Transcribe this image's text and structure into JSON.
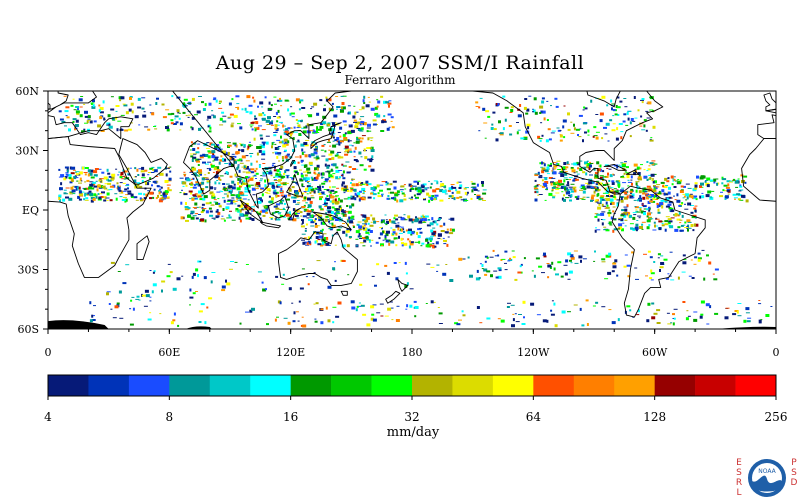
{
  "title": "Aug 29 – Sep 2, 2007 SSM/I Rainfall",
  "subtitle": "Ferraro Algorithm",
  "map": {
    "lon_ticks": [
      {
        "label": "0",
        "lon": 0
      },
      {
        "label": "60E",
        "lon": 60
      },
      {
        "label": "120E",
        "lon": 120
      },
      {
        "label": "180",
        "lon": 180
      },
      {
        "label": "120W",
        "lon": 240
      },
      {
        "label": "60W",
        "lon": 300
      },
      {
        "label": "0",
        "lon": 360
      }
    ],
    "lat_ticks": [
      {
        "label": "60N",
        "lat": 60
      },
      {
        "label": "30N",
        "lat": 30
      },
      {
        "label": "EQ",
        "lat": 0
      },
      {
        "label": "30S",
        "lat": -30
      },
      {
        "label": "60S",
        "lat": -60
      }
    ],
    "lon_range": [
      0,
      360
    ],
    "lat_range": [
      -60,
      60
    ],
    "land_color": "#000000",
    "ocean_color": "#ffffff"
  },
  "colorbar": {
    "colors": [
      "#061a78",
      "#0033b8",
      "#1a4cff",
      "#009999",
      "#00c8c8",
      "#00ffff",
      "#009900",
      "#00c800",
      "#00ff00",
      "#b3b300",
      "#dcdc00",
      "#ffff00",
      "#ff5000",
      "#ff7f00",
      "#ffa000",
      "#960000",
      "#c80000",
      "#ff0000"
    ],
    "tick_labels": [
      {
        "label": "4",
        "index": 0
      },
      {
        "label": "8",
        "index": 3
      },
      {
        "label": "16",
        "index": 6
      },
      {
        "label": "32",
        "index": 9
      },
      {
        "label": "64",
        "index": 12
      },
      {
        "label": "128",
        "index": 15
      },
      {
        "label": "256",
        "index": 18
      }
    ],
    "unit_label": "mm/day"
  },
  "logo": {
    "left_letters": "ESRL",
    "right_letters": "PSD",
    "badge_text": "NOAA"
  }
}
